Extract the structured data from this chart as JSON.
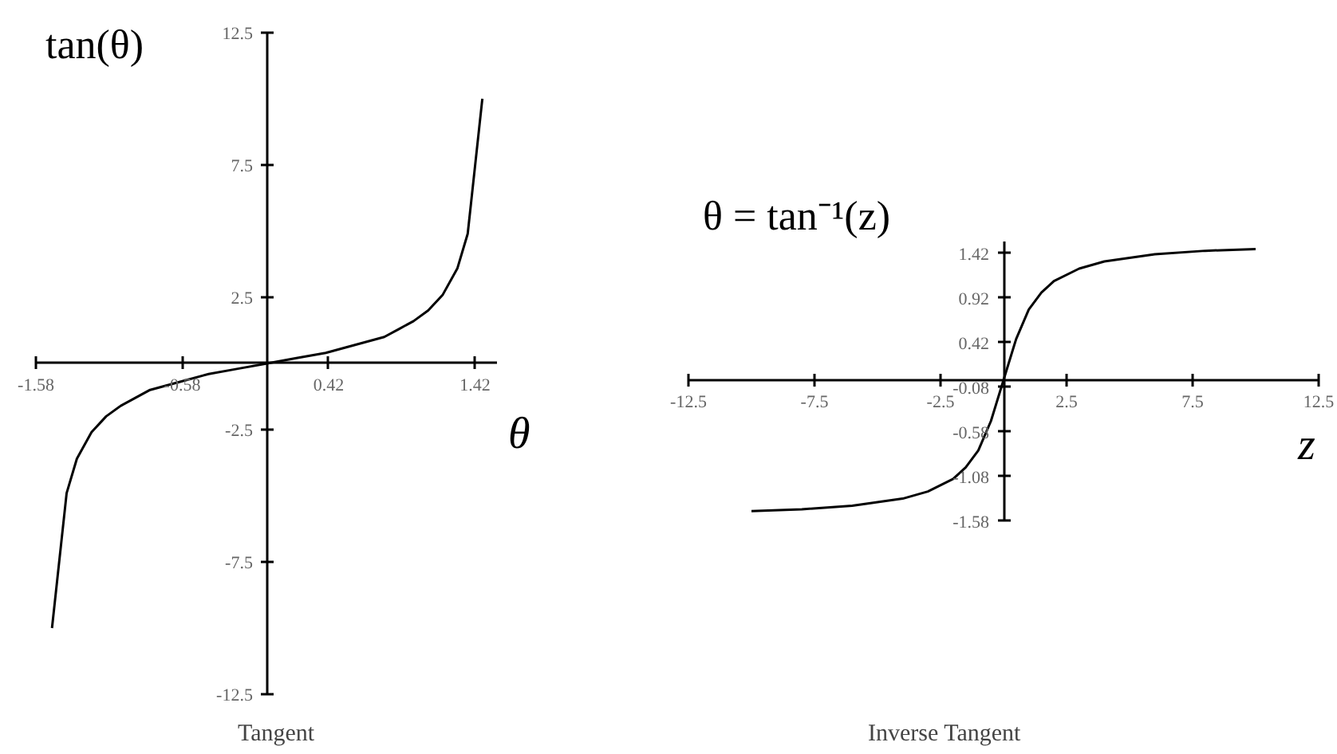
{
  "chart_data": [
    {
      "type": "line",
      "title": "Tangent",
      "xlabel": "θ",
      "ylabel": "tan(θ)",
      "color": "#000000",
      "grid": false,
      "x": [
        -1.47,
        -1.37,
        -1.3,
        -1.2,
        -1.1,
        -1.0,
        -0.9,
        -0.8,
        -0.6,
        -0.4,
        -0.2,
        0,
        0.2,
        0.4,
        0.6,
        0.8,
        0.9,
        1.0,
        1.1,
        1.2,
        1.3,
        1.37,
        1.47
      ],
      "values": [
        -10.0,
        -4.9,
        -3.6,
        -2.6,
        -2.0,
        -1.6,
        -1.3,
        -1.0,
        -0.7,
        -0.4,
        -0.2,
        0,
        0.2,
        0.4,
        0.7,
        1.0,
        1.3,
        1.6,
        2.0,
        2.6,
        3.6,
        4.9,
        10.0
      ],
      "xlim": [
        -1.58,
        1.57
      ],
      "ylim": [
        -12.5,
        12.5
      ],
      "xticks": [
        -1.58,
        -0.58,
        0.42,
        1.42
      ],
      "yticks": [
        -12.5,
        -7.5,
        -2.5,
        2.5,
        7.5,
        12.5
      ]
    },
    {
      "type": "line",
      "title": "Inverse Tangent",
      "xlabel": "z",
      "ylabel": "θ = tan⁻¹(z)",
      "color": "#000000",
      "grid": false,
      "x": [
        -10,
        -8,
        -6,
        -4,
        -3,
        -2,
        -1.5,
        -1,
        -0.5,
        0,
        0.5,
        1,
        1.5,
        2,
        3,
        4,
        6,
        8,
        10
      ],
      "values": [
        -1.47,
        -1.45,
        -1.41,
        -1.33,
        -1.25,
        -1.11,
        -0.98,
        -0.79,
        -0.46,
        0,
        0.46,
        0.79,
        0.98,
        1.11,
        1.25,
        1.33,
        1.41,
        1.45,
        1.47
      ],
      "xlim": [
        -12.5,
        12.5
      ],
      "ylim": [
        -1.58,
        1.56
      ],
      "xticks": [
        -12.5,
        -7.5,
        -2.5,
        2.5,
        7.5,
        12.5
      ],
      "yticks": [
        -1.58,
        -1.08,
        -0.58,
        -0.08,
        0.42,
        0.92,
        1.42
      ]
    }
  ]
}
